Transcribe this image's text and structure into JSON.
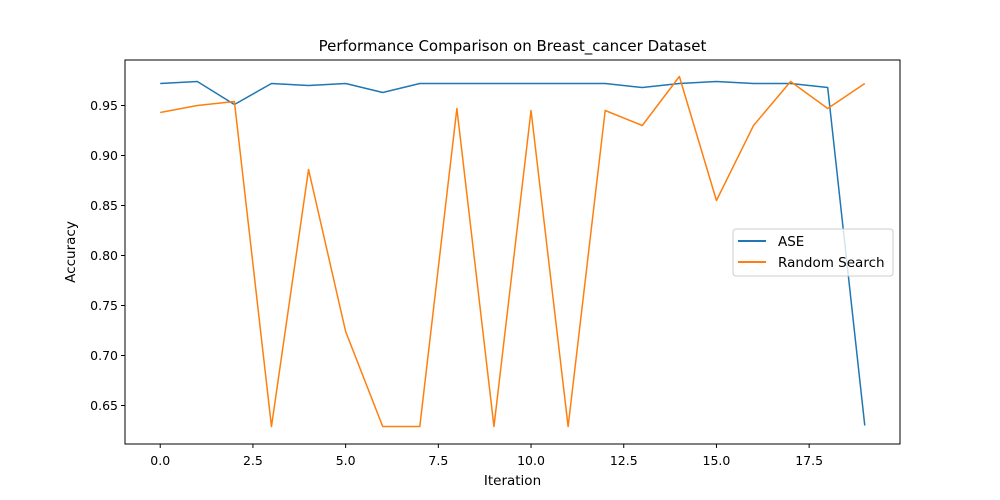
{
  "chart_data": {
    "type": "line",
    "title": "Performance Comparison on Breast_cancer Dataset",
    "xlabel": "Iteration",
    "ylabel": "Accuracy",
    "x": [
      0,
      1,
      2,
      3,
      4,
      5,
      6,
      7,
      8,
      9,
      10,
      11,
      12,
      13,
      14,
      15,
      16,
      17,
      18,
      19
    ],
    "xlim": [
      -0.95,
      19.95
    ],
    "ylim": [
      0.6115,
      0.9955
    ],
    "xticks": [
      0.0,
      2.5,
      5.0,
      7.5,
      10.0,
      12.5,
      15.0,
      17.5
    ],
    "xtick_labels": [
      "0.0",
      "2.5",
      "5.0",
      "7.5",
      "10.0",
      "12.5",
      "15.0",
      "17.5"
    ],
    "yticks": [
      0.65,
      0.7,
      0.75,
      0.8,
      0.85,
      0.9,
      0.95
    ],
    "ytick_labels": [
      "0.65",
      "0.70",
      "0.75",
      "0.80",
      "0.85",
      "0.90",
      "0.95"
    ],
    "grid": false,
    "legend_position": "center-right",
    "series": [
      {
        "name": "ASE",
        "color": "#1f77b4",
        "values": [
          0.972,
          0.974,
          0.951,
          0.972,
          0.97,
          0.972,
          0.963,
          0.972,
          0.972,
          0.972,
          0.972,
          0.972,
          0.972,
          0.968,
          0.972,
          0.974,
          0.972,
          0.972,
          0.968,
          0.63
        ]
      },
      {
        "name": "Random Search",
        "color": "#ff7f0e",
        "values": [
          0.943,
          0.95,
          0.954,
          0.629,
          0.886,
          0.724,
          0.629,
          0.629,
          0.947,
          0.629,
          0.945,
          0.629,
          0.945,
          0.93,
          0.979,
          0.855,
          0.93,
          0.974,
          0.947,
          0.972
        ]
      }
    ]
  }
}
